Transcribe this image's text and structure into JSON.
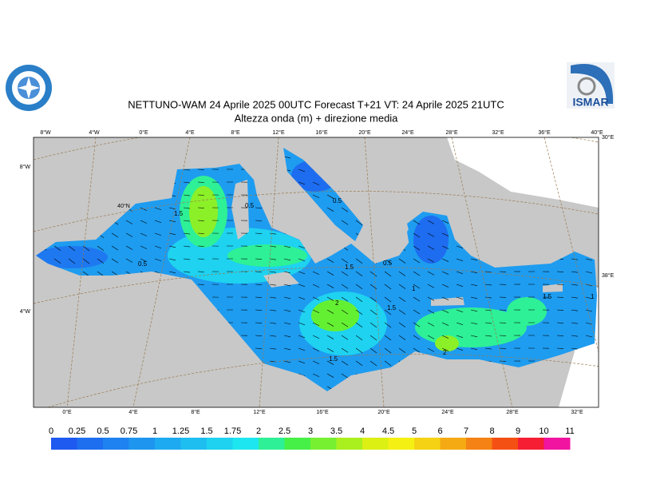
{
  "header": {
    "title": "NETTUNO-WAM  24   Aprile  2025 00UTC Forecast T+21 VT: 24   Aprile  2025 21UTC",
    "subtitle": "Altezza onda (m) + direzione media",
    "logo_text": "ISMAR"
  },
  "map": {
    "top_lon_labels": [
      "8°W",
      "4°W",
      "0°E",
      "4°E",
      "8°E",
      "12°E",
      "16°E",
      "20°E",
      "24°E",
      "28°E",
      "32°E",
      "36°E",
      "40°E"
    ],
    "bottom_lon_labels": [
      "0°E",
      "4°E",
      "8°E",
      "12°E",
      "16°E",
      "20°E",
      "24°E",
      "28°E",
      "32°E"
    ],
    "left_labels": [
      "8°W",
      "4°W"
    ],
    "right_labels": [
      "30°E",
      "38°E"
    ],
    "lat_label": "40°N",
    "contour_labels": [
      "1.5",
      "0.5",
      "0.5",
      "0.5",
      "1.5",
      "0.5",
      "1.5",
      "1",
      "2",
      "1.5",
      "2",
      "1.5",
      "1"
    ]
  },
  "colorbar": {
    "labels": [
      "0",
      "0.25",
      "0.5",
      "0.75",
      "1",
      "1.25",
      "1.5",
      "1.75",
      "2",
      "2.5",
      "3",
      "3.5",
      "4",
      "4.5",
      "5",
      "6",
      "7",
      "8",
      "9",
      "10",
      "11"
    ],
    "colors": [
      "#1e5af0",
      "#1e6ef0",
      "#1e82f0",
      "#1e96f0",
      "#1eaaf0",
      "#1ebef0",
      "#1ed2f0",
      "#1ee6f0",
      "#2ef096",
      "#46f046",
      "#78f032",
      "#aaf01e",
      "#dcf014",
      "#f5f014",
      "#f5d214",
      "#f5aa14",
      "#f58214",
      "#f55014",
      "#f51e32",
      "#f014a0"
    ]
  }
}
